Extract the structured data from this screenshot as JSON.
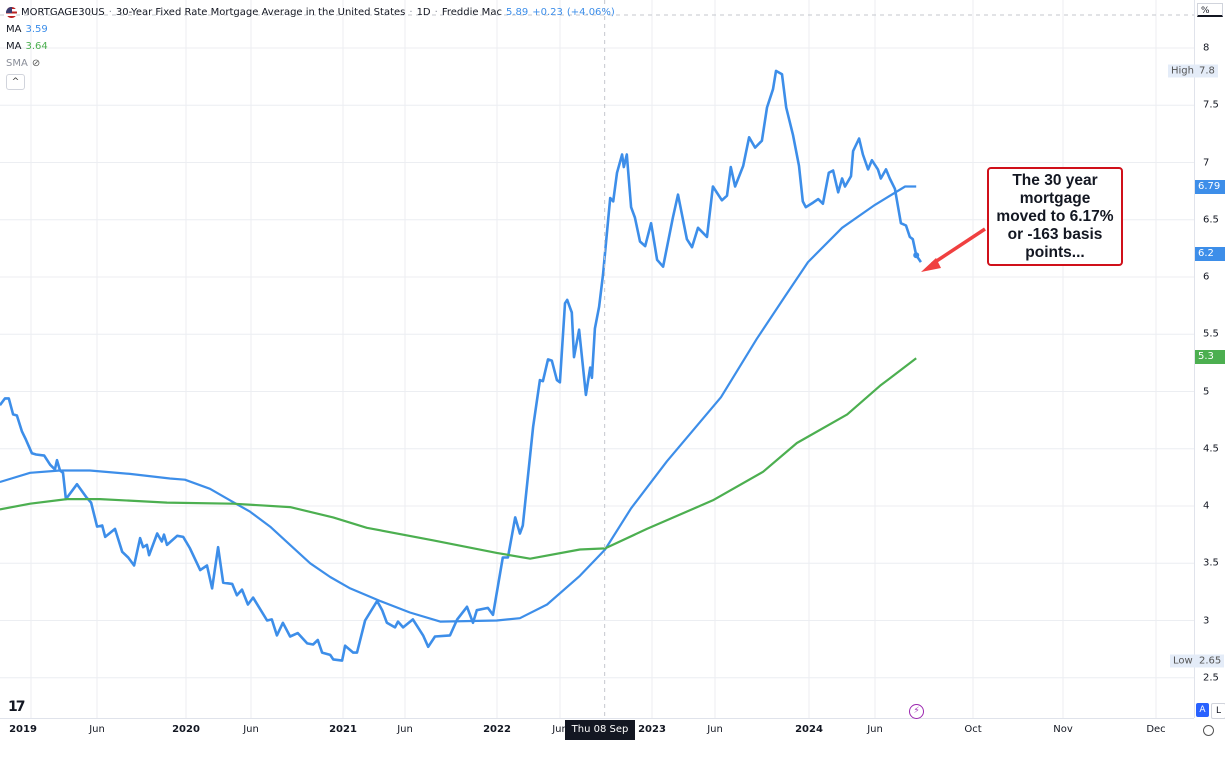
{
  "header": {
    "symbol": "MORTGAGE30US",
    "description": "30-Year Fixed Rate Mortgage Average in the United States",
    "interval": "1D",
    "source": "Freddie Mac",
    "separator": "·",
    "last_value": "5.89",
    "change": "+0.23",
    "change_pct": "(+4.06%)",
    "flag_icon": "us-flag-icon"
  },
  "indicators": [
    {
      "label": "MA",
      "value": "3.59",
      "color": "#3d8ee9"
    },
    {
      "label": "MA",
      "value": "3.64",
      "color": "#4caf50"
    },
    {
      "label": "SMA",
      "icon": "eye-hidden-icon"
    }
  ],
  "price_axis": {
    "unit": "%",
    "high_label": "High",
    "high_value": "7.8",
    "low_label": "Low",
    "low_value": "2.65",
    "current_labels": [
      {
        "text": "6.79",
        "value": 6.79,
        "color": "#3d8ee9"
      },
      {
        "text": "6.2",
        "value": 6.2,
        "color": "#3d8ee9"
      },
      {
        "text": "5.3",
        "value": 5.3,
        "color": "#4caf50"
      }
    ],
    "auto_button": "A",
    "log_button": "L"
  },
  "crosshair": {
    "date_label": "Thu 08 Sep '22",
    "date": "2022-09-08"
  },
  "annotation": {
    "text": "The 30 year mortgage moved to 6.17% or -163 basis points...",
    "border_color": "#d0101a",
    "arrow_color": "#f04040"
  },
  "chart_data": {
    "type": "line",
    "ylim": [
      2.35,
      8.3
    ],
    "y_ticks": [
      8,
      7.5,
      7,
      6.5,
      6,
      5.5,
      5,
      4.5,
      4,
      3.5,
      3,
      2.5
    ],
    "x_ticks": [
      {
        "label": "2019",
        "year": true
      },
      {
        "label": "Jun"
      },
      {
        "label": "2020",
        "year": true
      },
      {
        "label": "Jun"
      },
      {
        "label": "2021",
        "year": true
      },
      {
        "label": "Jun"
      },
      {
        "label": "2022",
        "year": true
      },
      {
        "label": "Jun"
      },
      {
        "label": "2023",
        "year": true
      },
      {
        "label": "Jun"
      },
      {
        "label": "2024",
        "year": true
      },
      {
        "label": "Jun"
      },
      {
        "label": "Oct"
      },
      {
        "label": "Nov"
      },
      {
        "label": "Dec"
      }
    ],
    "grid": true,
    "series": [
      {
        "color": "#3d8ee9",
        "dates": [
          "2018-10-20",
          "2018-11-01",
          "2018-11-10",
          "2018-11-20",
          "2018-11-29",
          "2018-12-11",
          "2018-12-20",
          "2019-01-03",
          "2019-01-13",
          "2019-02-01",
          "2019-02-15",
          "2019-02-26",
          "2019-03-03",
          "2019-03-10",
          "2019-03-17",
          "2019-03-24",
          "2019-04-19",
          "2019-05-10",
          "2019-05-22",
          "2019-06-05",
          "2019-06-17",
          "2019-06-24",
          "2019-07-17",
          "2019-08-03",
          "2019-08-17",
          "2019-08-31",
          "2019-09-14",
          "2019-09-21",
          "2019-09-30",
          "2019-10-05",
          "2019-10-24",
          "2019-11-04",
          "2019-11-09",
          "2019-11-16",
          "2019-12-10",
          "2019-12-24",
          "2020-01-09",
          "2020-02-02",
          "2020-02-18",
          "2020-03-01",
          "2020-03-15",
          "2020-03-27",
          "2020-04-17",
          "2020-04-28",
          "2020-05-10",
          "2020-05-24",
          "2020-06-05",
          "2020-07-08",
          "2020-07-19",
          "2020-07-31",
          "2020-08-14",
          "2020-08-31",
          "2020-09-18",
          "2020-10-10",
          "2020-10-24",
          "2020-11-04",
          "2020-11-14",
          "2020-12-03",
          "2020-12-10",
          "2020-12-31",
          "2021-01-07",
          "2021-01-26",
          "2021-02-04",
          "2021-02-23",
          "2021-03-23",
          "2021-04-04",
          "2021-04-15",
          "2021-05-04",
          "2021-05-11",
          "2021-05-23",
          "2021-06-15",
          "2021-07-09",
          "2021-07-21",
          "2021-08-06",
          "2021-09-10",
          "2021-09-27",
          "2021-10-20",
          "2021-11-03",
          "2021-11-12",
          "2021-12-08",
          "2021-12-20",
          "2022-01-12",
          "2022-01-24",
          "2022-02-10",
          "2022-02-21",
          "2022-02-28",
          "2022-03-24",
          "2022-04-09",
          "2022-04-16",
          "2022-04-28",
          "2022-05-07",
          "2022-05-19",
          "2022-05-26",
          "2022-06-07",
          "2022-06-12",
          "2022-06-23",
          "2022-06-28",
          "2022-07-10",
          "2022-07-26",
          "2022-08-05",
          "2022-08-09",
          "2022-08-16",
          "2022-08-26",
          "2022-09-04",
          "2022-09-21",
          "2022-09-28",
          "2022-10-07",
          "2022-10-19",
          "2022-10-23",
          "2022-10-30",
          "2022-11-09",
          "2022-11-18",
          "2022-11-30",
          "2022-12-12",
          "2022-12-26",
          "2023-01-09",
          "2023-01-23",
          "2023-02-15",
          "2023-02-27",
          "2023-03-20",
          "2023-04-01",
          "2023-04-15",
          "2023-05-06",
          "2023-05-20",
          "2023-06-10",
          "2023-06-22",
          "2023-07-01",
          "2023-07-11",
          "2023-07-30",
          "2023-08-13",
          "2023-08-27",
          "2023-09-12",
          "2023-09-24",
          "2023-10-08",
          "2023-10-15",
          "2023-10-29",
          "2023-11-08",
          "2023-11-24",
          "2023-12-08",
          "2023-12-17",
          "2023-12-24",
          "2024-01-10",
          "2024-01-22",
          "2024-02-02",
          "2024-02-16",
          "2024-02-26",
          "2024-03-09",
          "2024-03-18",
          "2024-03-25",
          "2024-04-08",
          "2024-04-13",
          "2024-04-27",
          "2024-05-06",
          "2024-05-18",
          "2024-05-27",
          "2024-06-10",
          "2024-06-17",
          "2024-06-29",
          "2024-07-08",
          "2024-07-20",
          "2024-08-03",
          "2024-08-15",
          "2024-08-24",
          "2024-08-31",
          "2024-09-08",
          "2024-09-19"
        ],
        "values": [
          4.88,
          4.94,
          4.94,
          4.8,
          4.79,
          4.65,
          4.58,
          4.46,
          4.45,
          4.44,
          4.36,
          4.32,
          4.4,
          4.31,
          4.29,
          4.06,
          4.19,
          4.08,
          4.03,
          3.82,
          3.83,
          3.73,
          3.8,
          3.6,
          3.55,
          3.48,
          3.72,
          3.64,
          3.66,
          3.57,
          3.76,
          3.69,
          3.75,
          3.66,
          3.74,
          3.73,
          3.63,
          3.44,
          3.48,
          3.28,
          3.64,
          3.33,
          3.32,
          3.22,
          3.27,
          3.14,
          3.2,
          3.0,
          3.01,
          2.87,
          2.98,
          2.86,
          2.89,
          2.8,
          2.79,
          2.83,
          2.72,
          2.7,
          2.66,
          2.65,
          2.78,
          2.72,
          2.72,
          3.0,
          3.17,
          3.09,
          2.98,
          2.94,
          2.99,
          2.94,
          3.01,
          2.87,
          2.77,
          2.86,
          2.87,
          3.01,
          3.12,
          2.98,
          3.09,
          3.11,
          3.05,
          3.55,
          3.55,
          3.9,
          3.76,
          3.83,
          4.69,
          5.1,
          5.09,
          5.28,
          5.27,
          5.1,
          5.08,
          5.77,
          5.8,
          5.69,
          5.3,
          5.54,
          4.97,
          5.21,
          5.12,
          5.55,
          5.74,
          6.02,
          6.69,
          6.66,
          6.91,
          7.07,
          6.96,
          7.07,
          6.61,
          6.52,
          6.31,
          6.27,
          6.47,
          6.15,
          6.09,
          6.52,
          6.72,
          6.33,
          6.26,
          6.43,
          6.35,
          6.79,
          6.67,
          6.71,
          6.96,
          6.79,
          6.97,
          7.22,
          7.13,
          7.19,
          7.48,
          7.64,
          7.8,
          7.77,
          7.48,
          7.24,
          6.97,
          6.66,
          6.61,
          6.65,
          6.68,
          6.64,
          6.91,
          6.93,
          6.74,
          6.86,
          6.79,
          6.88,
          7.1,
          7.21,
          7.07,
          6.94,
          7.02,
          6.94,
          6.86,
          6.94,
          6.86,
          6.77,
          6.47,
          6.45,
          6.35,
          6.33,
          6.19,
          6.13
        ]
      },
      {
        "name": "MA",
        "color": "#3d8ee9",
        "dates": [
          "2018-10-20",
          "2018-12-30",
          "2019-03-10",
          "2019-05-19",
          "2019-08-21",
          "2019-11-23",
          "2019-12-28",
          "2020-02-25",
          "2020-04-12",
          "2020-05-29",
          "2020-07-15",
          "2020-08-31",
          "2020-10-17",
          "2020-12-03",
          "2021-01-19",
          "2021-03-30",
          "2021-06-08",
          "2021-08-18",
          "2021-12-29",
          "2022-02-21",
          "2022-04-26",
          "2022-07-12",
          "2022-09-09",
          "2022-11-09",
          "2023-02-01",
          "2023-06-08",
          "2023-08-31",
          "2023-11-05",
          "2023-12-29",
          "2024-03-18",
          "2024-06-03",
          "2024-08-13",
          "2024-09-08"
        ],
        "values": [
          4.21,
          4.29,
          4.31,
          4.31,
          4.28,
          4.24,
          4.23,
          4.15,
          4.05,
          3.95,
          3.82,
          3.66,
          3.5,
          3.38,
          3.28,
          3.17,
          3.07,
          2.99,
          3.0,
          3.02,
          3.14,
          3.39,
          3.62,
          3.98,
          4.39,
          4.95,
          5.46,
          5.83,
          6.13,
          6.43,
          6.63,
          6.79,
          6.79
        ]
      },
      {
        "name": "MA",
        "color": "#4caf50",
        "dates": [
          "2018-10-20",
          "2018-12-30",
          "2019-03-26",
          "2019-06-12",
          "2019-11-16",
          "2020-04-19",
          "2020-08-31",
          "2020-12-10",
          "2021-02-27",
          "2021-08-01",
          "2021-12-29",
          "2022-03-17",
          "2022-07-12",
          "2022-09-09",
          "2022-12-16",
          "2023-05-20",
          "2023-09-15",
          "2023-12-03",
          "2024-03-30",
          "2024-06-15",
          "2024-09-08"
        ],
        "values": [
          3.97,
          4.02,
          4.06,
          4.06,
          4.03,
          4.02,
          3.99,
          3.9,
          3.81,
          3.7,
          3.59,
          3.54,
          3.62,
          3.63,
          3.8,
          4.05,
          4.3,
          4.55,
          4.8,
          5.05,
          5.29
        ]
      }
    ]
  }
}
